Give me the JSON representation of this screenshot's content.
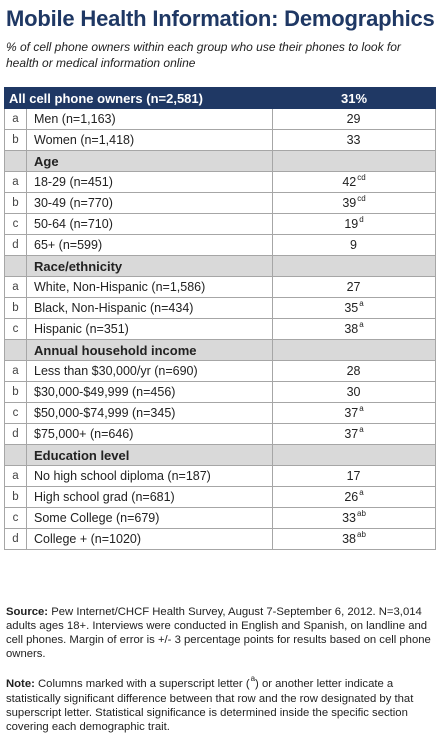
{
  "title": "Mobile Health Information: Demographics",
  "subtitle": "% of cell phone owners within each group who use their phones to look for health or medical information online",
  "all_row": {
    "label": "All cell phone owners (n=2,581)",
    "value": "31%"
  },
  "gender_rows": [
    {
      "letter": "a",
      "label": "Men (n=1,163)",
      "value": "29",
      "sup": ""
    },
    {
      "letter": "b",
      "label": "Women (n=1,418)",
      "value": "33",
      "sup": ""
    }
  ],
  "age": {
    "heading": "Age",
    "rows": [
      {
        "letter": "a",
        "label": "18-29 (n=451)",
        "value": "42",
        "sup": "cd"
      },
      {
        "letter": "b",
        "label": "30-49 (n=770)",
        "value": "39",
        "sup": "cd"
      },
      {
        "letter": "c",
        "label": "50-64 (n=710)",
        "value": "19",
        "sup": "d"
      },
      {
        "letter": "d",
        "label": "65+ (n=599)",
        "value": "9",
        "sup": ""
      }
    ]
  },
  "race": {
    "heading": "Race/ethnicity",
    "rows": [
      {
        "letter": "a",
        "label": "White, Non-Hispanic (n=1,586)",
        "value": "27",
        "sup": ""
      },
      {
        "letter": "b",
        "label": "Black, Non-Hispanic (n=434)",
        "value": "35",
        "sup": "a"
      },
      {
        "letter": "c",
        "label": "Hispanic (n=351)",
        "value": "38",
        "sup": "a"
      }
    ]
  },
  "income": {
    "heading": "Annual household income",
    "rows": [
      {
        "letter": "a",
        "label": "Less than $30,000/yr (n=690)",
        "value": "28",
        "sup": ""
      },
      {
        "letter": "b",
        "label": "$30,000-$49,999 (n=456)",
        "value": "30",
        "sup": ""
      },
      {
        "letter": "c",
        "label": "$50,000-$74,999 (n=345)",
        "value": "37",
        "sup": "a"
      },
      {
        "letter": "d",
        "label": "$75,000+ (n=646)",
        "value": "37",
        "sup": "a"
      }
    ]
  },
  "education": {
    "heading": "Education level",
    "rows": [
      {
        "letter": "a",
        "label": "No high school diploma (n=187)",
        "value": "17",
        "sup": ""
      },
      {
        "letter": "b",
        "label": "High school grad (n=681)",
        "value": "26",
        "sup": "a"
      },
      {
        "letter": "c",
        "label": "Some College (n=679)",
        "value": "33",
        "sup": "ab"
      },
      {
        "letter": "d",
        "label": "College + (n=1020)",
        "value": "38",
        "sup": "ab"
      }
    ]
  },
  "source": {
    "label": "Source:",
    "text": " Pew Internet/CHCF Health Survey, August 7-September 6, 2012. N=3,014 adults ages 18+. Interviews were conducted in English and Spanish, on landline and cell phones. Margin of error is +/- 3 percentage points for results based on cell phone owners."
  },
  "note": {
    "label": "Note:",
    "text_before": " Columns marked with a superscript letter (",
    "sup": "a",
    "text_after": ") or another letter indicate a statistically significant difference between that row and the row designated by that superscript letter. Statistical significance is determined inside the specific section covering each demographic trait."
  },
  "colors": {
    "title": "#1f3864",
    "header_fill": "#1f3864",
    "section_fill": "#d9d9d9",
    "border": "#a6a6a6"
  }
}
